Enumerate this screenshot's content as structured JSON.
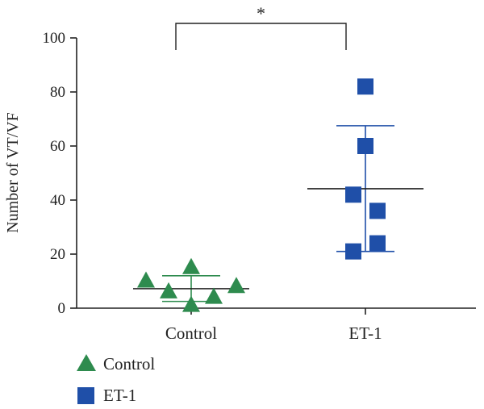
{
  "chart_data": {
    "type": "scatter",
    "ylabel": "Number of VT/VF",
    "xlabel": "",
    "ylim": [
      0,
      100
    ],
    "yticks": [
      0,
      20,
      40,
      60,
      80,
      100
    ],
    "categories": [
      "Control",
      "ET-1"
    ],
    "significance": {
      "label": "*",
      "between": [
        "Control",
        "ET-1"
      ]
    },
    "legend": {
      "position": "bottom-left",
      "entries": [
        "Control",
        "ET-1"
      ]
    },
    "grid": false,
    "series": [
      {
        "name": "Control",
        "marker": "triangle",
        "color": "#2e8b4e",
        "points": [
          {
            "x": "Control",
            "y": 10
          },
          {
            "x": "Control",
            "y": 6
          },
          {
            "x": "Control",
            "y": 15
          },
          {
            "x": "Control",
            "y": 1
          },
          {
            "x": "Control",
            "y": 4
          },
          {
            "x": "Control",
            "y": 8
          }
        ],
        "mean": 7.2,
        "error_upper": 12,
        "error_lower": 2.5
      },
      {
        "name": "ET-1",
        "marker": "square",
        "color": "#1f4fa8",
        "points": [
          {
            "x": "ET-1",
            "y": 82
          },
          {
            "x": "ET-1",
            "y": 60
          },
          {
            "x": "ET-1",
            "y": 42
          },
          {
            "x": "ET-1",
            "y": 36
          },
          {
            "x": "ET-1",
            "y": 24
          },
          {
            "x": "ET-1",
            "y": 21
          }
        ],
        "mean": 44.2,
        "error_upper": 67.5,
        "error_lower": 21
      }
    ]
  }
}
